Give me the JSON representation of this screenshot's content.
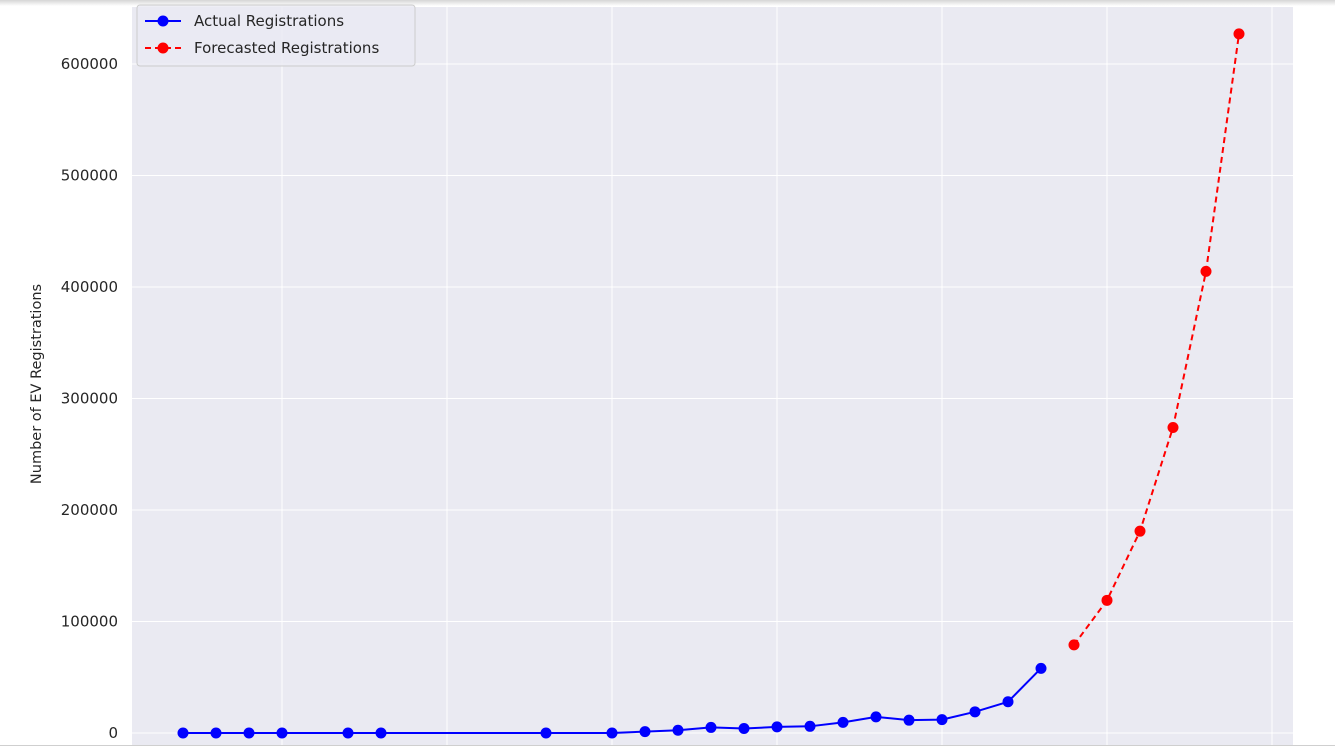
{
  "chart_data": {
    "type": "line",
    "ylabel": "Number of EV Registrations",
    "xlabel": "",
    "ylim": [
      0,
      600000
    ],
    "yticks": [
      0,
      100000,
      200000,
      300000,
      400000,
      500000,
      600000
    ],
    "grid": true,
    "legend_position": "top-left",
    "series": [
      {
        "name": "Actual Registrations",
        "color": "#0000ff",
        "style": "solid",
        "x": [
          1997,
          1998,
          1999,
          2000,
          2002,
          2003,
          2008,
          2010,
          2011,
          2012,
          2013,
          2014,
          2015,
          2016,
          2017,
          2018,
          2019,
          2020,
          2021,
          2022,
          2023
        ],
        "values": [
          1,
          1,
          1,
          1,
          2,
          2,
          19,
          23,
          1200,
          2500,
          5000,
          4000,
          5500,
          6000,
          9500,
          14500,
          11500,
          12000,
          19000,
          28000,
          58000
        ]
      },
      {
        "name": "Forecasted Registrations",
        "color": "#ff0000",
        "style": "dashed",
        "x": [
          2024,
          2025,
          2026,
          2027,
          2028,
          2029
        ],
        "values": [
          79000,
          119000,
          181000,
          274000,
          414000,
          627000
        ]
      }
    ]
  }
}
